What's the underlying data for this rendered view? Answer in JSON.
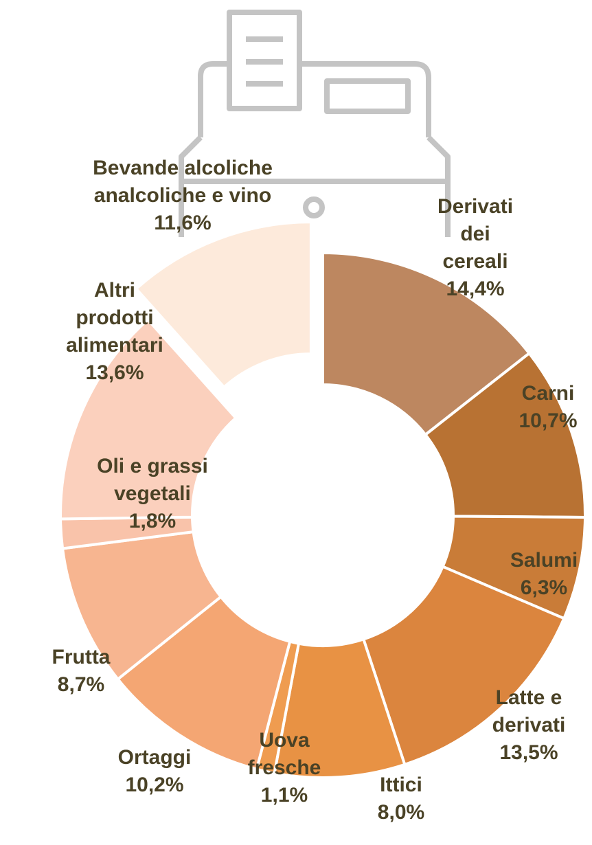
{
  "chart_data": {
    "type": "pie",
    "variant": "donut",
    "unit": "%",
    "slices": [
      {
        "label_lines": [
          "Derivati",
          "dei",
          "cereali"
        ],
        "value": 14.4,
        "value_label": "14,4%",
        "color": "#bd8760"
      },
      {
        "label_lines": [
          "Carni"
        ],
        "value": 10.7,
        "value_label": "10,7%",
        "color": "#b87233"
      },
      {
        "label_lines": [
          "Salumi"
        ],
        "value": 6.3,
        "value_label": "6,3%",
        "color": "#c97c38"
      },
      {
        "label_lines": [
          "Latte e",
          "derivati"
        ],
        "value": 13.5,
        "value_label": "13,5%",
        "color": "#db853e"
      },
      {
        "label_lines": [
          "Ittici"
        ],
        "value": 8.0,
        "value_label": "8,0%",
        "color": "#e89244"
      },
      {
        "label_lines": [
          "Uova",
          "fresche"
        ],
        "value": 1.1,
        "value_label": "1,1%",
        "color": "#ef9c50"
      },
      {
        "label_lines": [
          "Ortaggi"
        ],
        "value": 10.2,
        "value_label": "10,2%",
        "color": "#f4a673"
      },
      {
        "label_lines": [
          "Frutta"
        ],
        "value": 8.7,
        "value_label": "8,7%",
        "color": "#f7b590"
      },
      {
        "label_lines": [
          "Oli e grassi",
          "vegetali"
        ],
        "value": 1.8,
        "value_label": "1,8%",
        "color": "#f9c3aa"
      },
      {
        "label_lines": [
          "Altri",
          "prodotti",
          "alimentari"
        ],
        "value": 13.6,
        "value_label": "13,6%",
        "color": "#fbd0bd"
      },
      {
        "label_lines": [
          "Bevande alcoliche",
          "analcoliche e vino"
        ],
        "value": 11.6,
        "value_label": "11,6%",
        "color": "#fdeadb",
        "exploded": true
      }
    ]
  },
  "background_icon": {
    "name": "cash-register-icon",
    "color": "#c4c4c4"
  }
}
